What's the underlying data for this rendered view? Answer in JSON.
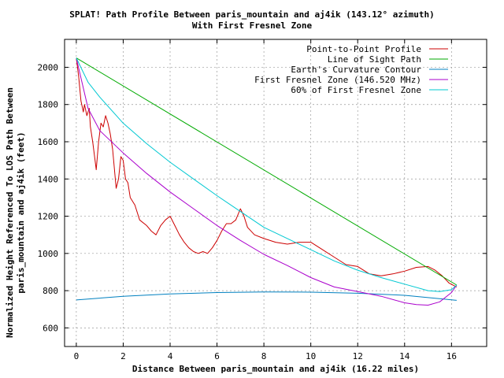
{
  "chart_data": {
    "type": "line",
    "title_line1": "SPLAT! Path Profile Between paris_mountain and aj4ik (143.12° azimuth)",
    "title_line2": "With First Fresnel Zone",
    "xlabel": "Distance Between paris_mountain and aj4ik (16.22 miles)",
    "ylabel_line1": "Normalized Height Referenced To LOS Path Between",
    "ylabel_line2": "paris_mountain and aj4ik (feet)",
    "xlim": [
      -0.5,
      17.5
    ],
    "ylim": [
      500,
      2150
    ],
    "x_ticks": [
      0,
      2,
      4,
      6,
      8,
      10,
      12,
      14,
      16
    ],
    "y_ticks": [
      600,
      800,
      1000,
      1200,
      1400,
      1600,
      1800,
      2000
    ],
    "grid": true,
    "legend_position": "top-right",
    "series": [
      {
        "name": "Point-to-Point Profile",
        "color": "#cc0000",
        "points": [
          [
            0,
            2050
          ],
          [
            0.1,
            1950
          ],
          [
            0.2,
            1820
          ],
          [
            0.3,
            1760
          ],
          [
            0.35,
            1800
          ],
          [
            0.45,
            1740
          ],
          [
            0.55,
            1780
          ],
          [
            0.6,
            1680
          ],
          [
            0.7,
            1600
          ],
          [
            0.8,
            1500
          ],
          [
            0.85,
            1450
          ],
          [
            0.95,
            1600
          ],
          [
            1.05,
            1700
          ],
          [
            1.15,
            1680
          ],
          [
            1.25,
            1740
          ],
          [
            1.35,
            1700
          ],
          [
            1.45,
            1640
          ],
          [
            1.55,
            1560
          ],
          [
            1.65,
            1420
          ],
          [
            1.7,
            1350
          ],
          [
            1.8,
            1400
          ],
          [
            1.9,
            1520
          ],
          [
            2.0,
            1500
          ],
          [
            2.1,
            1400
          ],
          [
            2.2,
            1380
          ],
          [
            2.3,
            1300
          ],
          [
            2.5,
            1260
          ],
          [
            2.7,
            1180
          ],
          [
            3.0,
            1150
          ],
          [
            3.2,
            1120
          ],
          [
            3.4,
            1100
          ],
          [
            3.6,
            1150
          ],
          [
            3.8,
            1180
          ],
          [
            4.0,
            1200
          ],
          [
            4.2,
            1150
          ],
          [
            4.4,
            1100
          ],
          [
            4.6,
            1060
          ],
          [
            4.8,
            1030
          ],
          [
            5.0,
            1010
          ],
          [
            5.2,
            1000
          ],
          [
            5.4,
            1010
          ],
          [
            5.6,
            1000
          ],
          [
            5.8,
            1030
          ],
          [
            6.0,
            1070
          ],
          [
            6.2,
            1120
          ],
          [
            6.4,
            1160
          ],
          [
            6.6,
            1160
          ],
          [
            6.8,
            1180
          ],
          [
            7.0,
            1240
          ],
          [
            7.15,
            1200
          ],
          [
            7.3,
            1140
          ],
          [
            7.6,
            1100
          ],
          [
            8.0,
            1080
          ],
          [
            8.5,
            1060
          ],
          [
            9.0,
            1050
          ],
          [
            9.5,
            1060
          ],
          [
            10.0,
            1060
          ],
          [
            10.5,
            1020
          ],
          [
            11.0,
            980
          ],
          [
            11.5,
            940
          ],
          [
            12.0,
            930
          ],
          [
            12.5,
            890
          ],
          [
            13.0,
            880
          ],
          [
            13.5,
            890
          ],
          [
            14.0,
            905
          ],
          [
            14.5,
            925
          ],
          [
            15.0,
            930
          ],
          [
            15.3,
            910
          ],
          [
            15.6,
            880
          ],
          [
            15.9,
            840
          ],
          [
            16.22,
            820
          ]
        ]
      },
      {
        "name": "Line of Sight Path",
        "color": "#00aa00",
        "points": [
          [
            0,
            2050
          ],
          [
            16.22,
            830
          ]
        ]
      },
      {
        "name": "Earth's Curvature Contour",
        "color": "#0080c0",
        "points": [
          [
            0,
            750
          ],
          [
            2,
            770
          ],
          [
            4,
            782
          ],
          [
            6,
            790
          ],
          [
            8,
            793
          ],
          [
            10,
            792
          ],
          [
            12,
            786
          ],
          [
            14,
            775
          ],
          [
            16.22,
            748
          ]
        ]
      },
      {
        "name": "First Fresnel Zone (146.520 MHz)",
        "color": "#aa00cc",
        "points": [
          [
            0,
            2050
          ],
          [
            0.5,
            1780
          ],
          [
            1,
            1660
          ],
          [
            2,
            1540
          ],
          [
            3,
            1430
          ],
          [
            4,
            1330
          ],
          [
            5,
            1240
          ],
          [
            6,
            1150
          ],
          [
            7,
            1070
          ],
          [
            8,
            995
          ],
          [
            9,
            935
          ],
          [
            10,
            870
          ],
          [
            11,
            820
          ],
          [
            12,
            795
          ],
          [
            13,
            770
          ],
          [
            14,
            735
          ],
          [
            14.5,
            725
          ],
          [
            15,
            722
          ],
          [
            15.5,
            740
          ],
          [
            16,
            790
          ],
          [
            16.22,
            830
          ]
        ]
      },
      {
        "name": "60% of First Fresnel Zone",
        "color": "#00c8d2",
        "points": [
          [
            0,
            2050
          ],
          [
            0.5,
            1920
          ],
          [
            1,
            1840
          ],
          [
            2,
            1700
          ],
          [
            3,
            1590
          ],
          [
            4,
            1490
          ],
          [
            5,
            1400
          ],
          [
            6,
            1310
          ],
          [
            7,
            1225
          ],
          [
            8,
            1140
          ],
          [
            9,
            1080
          ],
          [
            10,
            1020
          ],
          [
            11,
            960
          ],
          [
            12,
            910
          ],
          [
            13,
            870
          ],
          [
            14,
            835
          ],
          [
            15,
            800
          ],
          [
            15.5,
            795
          ],
          [
            16,
            805
          ],
          [
            16.22,
            830
          ]
        ]
      }
    ]
  }
}
